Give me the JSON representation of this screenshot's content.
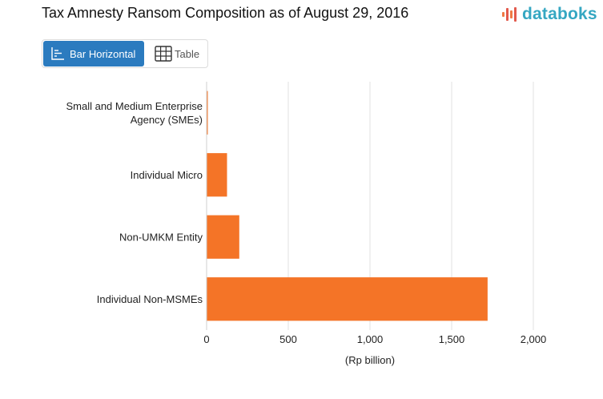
{
  "title": "Tax Amnesty Ransom Composition as of August 29, 2016",
  "brand": {
    "name": "databoks",
    "color": "#35a7c2",
    "mark_colors": [
      "#f07a45",
      "#e2594c"
    ]
  },
  "view_toggle": {
    "bar_label": "Bar Horizontal",
    "table_label": "Table",
    "active": "bar"
  },
  "colors": {
    "bar": "#f47427",
    "active_button": "#2b7bbf",
    "grid": "#e2e2e2"
  },
  "chart_data": {
    "type": "bar",
    "orientation": "horizontal",
    "categories": [
      [
        "Small and Medium Enterprise",
        "Agency (SMEs)"
      ],
      [
        "Individual Micro"
      ],
      [
        "Non-UMKM Entity"
      ],
      [
        "Individual Non-MSMEs"
      ]
    ],
    "values": [
      4,
      125,
      200,
      1720
    ],
    "xlabel": "(Rp billion)",
    "xlim": [
      0,
      2000
    ],
    "xticks": [
      0,
      500,
      1000,
      1500,
      2000
    ],
    "xtick_labels": [
      "0",
      "500",
      "1,000",
      "1,500",
      "2,000"
    ],
    "grid": true,
    "legend": "none"
  }
}
